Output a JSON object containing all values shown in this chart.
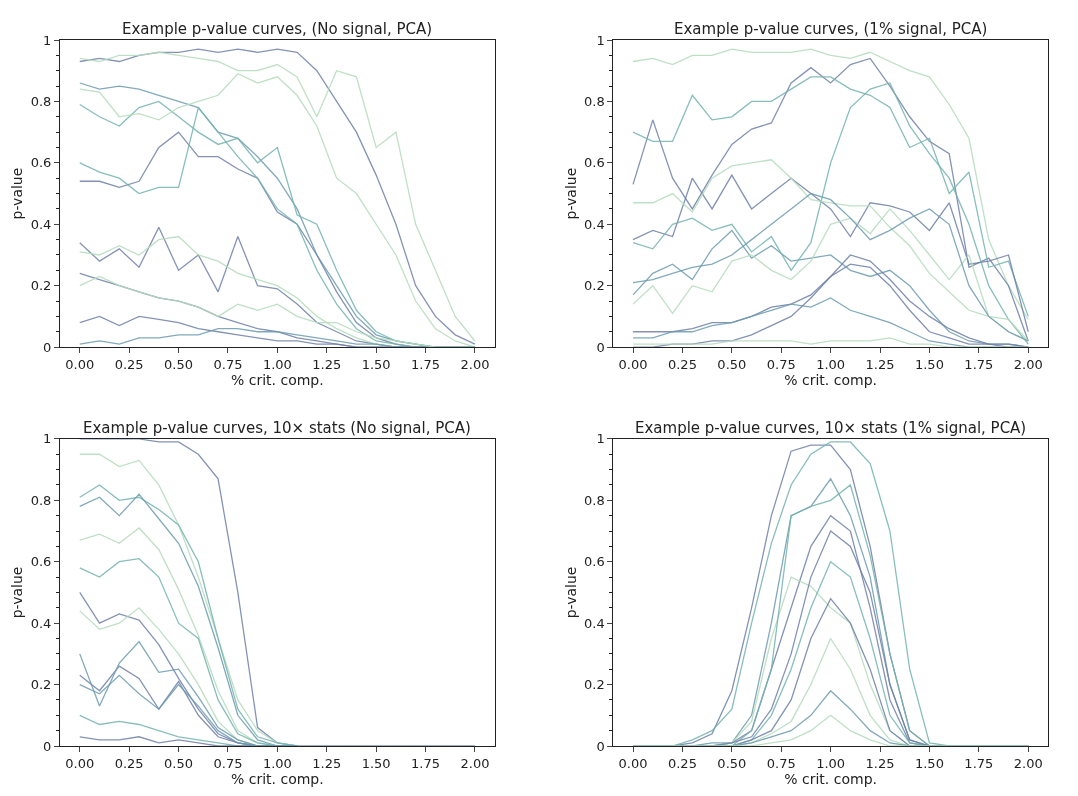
{
  "chart_data": [
    {
      "type": "line",
      "title": "Example p-value curves, (No signal, PCA)",
      "xlabel": "% crit. comp.",
      "ylabel": "p-value",
      "grid": false,
      "x": [
        0,
        0.1,
        0.2,
        0.3,
        0.4,
        0.5,
        0.6,
        0.7,
        0.8,
        0.9,
        1.0,
        1.1,
        1.2,
        1.3,
        1.4,
        1.5,
        1.6,
        1.7,
        1.8,
        1.9,
        2.0
      ],
      "xlim": [
        -0.1,
        2.1
      ],
      "xticks": [
        {
          "value": 0,
          "label": "0.00"
        },
        {
          "value": 0.25,
          "label": "0.25"
        },
        {
          "value": 0.5,
          "label": "0.50"
        },
        {
          "value": 0.75,
          "label": "0.75"
        },
        {
          "value": 1,
          "label": "1.00"
        },
        {
          "value": 1.25,
          "label": "1.25"
        },
        {
          "value": 1.5,
          "label": "1.50"
        },
        {
          "value": 1.75,
          "label": "1.75"
        },
        {
          "value": 2,
          "label": "2.00"
        }
      ],
      "ylim": [
        0,
        1
      ],
      "yticks": [
        0,
        0.2,
        0.4,
        0.6,
        0.8,
        1
      ],
      "series": [
        {
          "color": "#6f80a8",
          "values": [
            0.93,
            0.94,
            0.93,
            0.95,
            0.96,
            0.96,
            0.97,
            0.96,
            0.97,
            0.96,
            0.97,
            0.96,
            0.9,
            0.8,
            0.7,
            0.56,
            0.4,
            0.2,
            0.1,
            0.04,
            0.01
          ]
        },
        {
          "color": "#b3dbbb",
          "values": [
            0.94,
            0.93,
            0.95,
            0.95,
            0.96,
            0.95,
            0.94,
            0.93,
            0.9,
            0.9,
            0.92,
            0.88,
            0.75,
            0.9,
            0.88,
            0.65,
            0.7,
            0.4,
            0.25,
            0.1,
            0.02
          ]
        },
        {
          "color": "#6b9bb0",
          "values": [
            0.86,
            0.84,
            0.85,
            0.84,
            0.82,
            0.8,
            0.78,
            0.7,
            0.68,
            0.62,
            0.55,
            0.45,
            0.3,
            0.2,
            0.1,
            0.04,
            0.02,
            0.01,
            0,
            0,
            0
          ]
        },
        {
          "color": "#73b3ae",
          "values": [
            0.79,
            0.75,
            0.72,
            0.78,
            0.8,
            0.75,
            0.7,
            0.66,
            0.68,
            0.6,
            0.65,
            0.43,
            0.4,
            0.25,
            0.12,
            0.05,
            0.02,
            0.01,
            0,
            0,
            0
          ]
        },
        {
          "color": "#b3dbbb",
          "values": [
            0.84,
            0.83,
            0.75,
            0.76,
            0.74,
            0.78,
            0.8,
            0.82,
            0.89,
            0.86,
            0.88,
            0.82,
            0.72,
            0.55,
            0.5,
            0.4,
            0.3,
            0.15,
            0.06,
            0.02,
            0
          ]
        },
        {
          "color": "#6f80a8",
          "values": [
            0.54,
            0.54,
            0.52,
            0.54,
            0.65,
            0.7,
            0.62,
            0.62,
            0.58,
            0.55,
            0.44,
            0.4,
            0.3,
            0.18,
            0.08,
            0.03,
            0.01,
            0,
            0,
            0,
            0
          ]
        },
        {
          "color": "#73b3ae",
          "values": [
            0.6,
            0.57,
            0.55,
            0.5,
            0.52,
            0.52,
            0.78,
            0.7,
            0.62,
            0.55,
            0.45,
            0.4,
            0.25,
            0.14,
            0.06,
            0.02,
            0.01,
            0,
            0,
            0,
            0
          ]
        },
        {
          "color": "#6f80a8",
          "values": [
            0.34,
            0.28,
            0.32,
            0.26,
            0.39,
            0.25,
            0.3,
            0.18,
            0.36,
            0.2,
            0.19,
            0.14,
            0.08,
            0.05,
            0.02,
            0.01,
            0,
            0,
            0,
            0,
            0
          ]
        },
        {
          "color": "#b3dbbb",
          "values": [
            0.31,
            0.3,
            0.33,
            0.3,
            0.35,
            0.36,
            0.3,
            0.28,
            0.24,
            0.22,
            0.2,
            0.16,
            0.1,
            0.06,
            0.03,
            0.01,
            0,
            0,
            0,
            0,
            0
          ]
        },
        {
          "color": "#6f80a8",
          "values": [
            0.24,
            0.22,
            0.2,
            0.18,
            0.16,
            0.15,
            0.13,
            0.1,
            0.08,
            0.06,
            0.05,
            0.03,
            0.02,
            0.01,
            0,
            0,
            0,
            0,
            0,
            0,
            0
          ]
        },
        {
          "color": "#6f80a8",
          "values": [
            0.08,
            0.1,
            0.07,
            0.1,
            0.09,
            0.08,
            0.06,
            0.05,
            0.04,
            0.03,
            0.02,
            0.02,
            0.01,
            0.01,
            0,
            0,
            0,
            0,
            0,
            0,
            0
          ]
        },
        {
          "color": "#6b9bb0",
          "values": [
            0.01,
            0.02,
            0.01,
            0.03,
            0.03,
            0.04,
            0.04,
            0.06,
            0.06,
            0.05,
            0.05,
            0.04,
            0.03,
            0.02,
            0.01,
            0.01,
            0,
            0,
            0,
            0,
            0
          ]
        },
        {
          "color": "#b3dbbb",
          "values": [
            0.2,
            0.23,
            0.2,
            0.18,
            0.16,
            0.15,
            0.13,
            0.1,
            0.14,
            0.12,
            0.14,
            0.1,
            0.08,
            0.08,
            0.05,
            0.03,
            0.02,
            0.01,
            0,
            0,
            0
          ]
        }
      ]
    },
    {
      "type": "line",
      "title": "Example p-value curves, (1% signal, PCA)",
      "xlabel": "% crit. comp.",
      "ylabel": "p-value",
      "grid": false,
      "x": [
        0,
        0.1,
        0.2,
        0.3,
        0.4,
        0.5,
        0.6,
        0.7,
        0.8,
        0.9,
        1.0,
        1.1,
        1.2,
        1.3,
        1.4,
        1.5,
        1.6,
        1.7,
        1.8,
        1.9,
        2.0
      ],
      "xlim": [
        -0.1,
        2.1
      ],
      "xticks": [
        {
          "value": 0,
          "label": "0.00"
        },
        {
          "value": 0.25,
          "label": "0.25"
        },
        {
          "value": 0.5,
          "label": "0.50"
        },
        {
          "value": 0.75,
          "label": "0.75"
        },
        {
          "value": 1,
          "label": "1.00"
        },
        {
          "value": 1.25,
          "label": "1.25"
        },
        {
          "value": 1.5,
          "label": "1.50"
        },
        {
          "value": 1.75,
          "label": "1.75"
        },
        {
          "value": 2,
          "label": "2.00"
        }
      ],
      "ylim": [
        0,
        1
      ],
      "yticks": [
        0,
        0.2,
        0.4,
        0.6,
        0.8,
        1
      ],
      "series": [
        {
          "color": "#b3dbbb",
          "values": [
            0.93,
            0.94,
            0.92,
            0.95,
            0.95,
            0.97,
            0.96,
            0.96,
            0.96,
            0.97,
            0.95,
            0.94,
            0.96,
            0.93,
            0.9,
            0.88,
            0.79,
            0.68,
            0.35,
            0.2,
            0.09
          ]
        },
        {
          "color": "#6f80a8",
          "values": [
            0.53,
            0.74,
            0.55,
            0.45,
            0.56,
            0.66,
            0.71,
            0.73,
            0.86,
            0.91,
            0.86,
            0.92,
            0.94,
            0.85,
            0.75,
            0.67,
            0.63,
            0.26,
            0.29,
            0.2,
            0.02
          ]
        },
        {
          "color": "#73b3ae",
          "values": [
            0.7,
            0.67,
            0.67,
            0.82,
            0.74,
            0.75,
            0.8,
            0.8,
            0.84,
            0.88,
            0.88,
            0.84,
            0.82,
            0.78,
            0.65,
            0.68,
            0.5,
            0.57,
            0.26,
            0.28,
            0.1
          ]
        },
        {
          "color": "#6f80a8",
          "values": [
            0.35,
            0.38,
            0.36,
            0.55,
            0.45,
            0.56,
            0.45,
            0.5,
            0.55,
            0.5,
            0.45,
            0.36,
            0.47,
            0.46,
            0.44,
            0.38,
            0.47,
            0.27,
            0.28,
            0.3,
            0.05
          ]
        },
        {
          "color": "#6b9bb0",
          "values": [
            0.17,
            0.24,
            0.27,
            0.22,
            0.32,
            0.38,
            0.29,
            0.33,
            0.28,
            0.29,
            0.3,
            0.25,
            0.23,
            0.25,
            0.2,
            0.12,
            0.05,
            0.02,
            0.01,
            0.01,
            0
          ]
        },
        {
          "color": "#73b3ae",
          "values": [
            0.34,
            0.32,
            0.4,
            0.42,
            0.38,
            0.4,
            0.31,
            0.36,
            0.25,
            0.34,
            0.6,
            0.78,
            0.84,
            0.86,
            0.72,
            0.63,
            0.55,
            0.4,
            0.2,
            0.09,
            0.01
          ]
        },
        {
          "color": "#b3dbbb",
          "values": [
            0.47,
            0.47,
            0.5,
            0.44,
            0.55,
            0.59,
            0.6,
            0.61,
            0.55,
            0.48,
            0.47,
            0.46,
            0.46,
            0.39,
            0.33,
            0.24,
            0.18,
            0.12,
            0.1,
            0.09,
            0.02
          ]
        },
        {
          "color": "#6f80a8",
          "values": [
            0.05,
            0.05,
            0.05,
            0.06,
            0.08,
            0.08,
            0.1,
            0.13,
            0.14,
            0.17,
            0.23,
            0.27,
            0.26,
            0.2,
            0.12,
            0.05,
            0.03,
            0.01,
            0.01,
            0,
            0
          ]
        },
        {
          "color": "#6b9bb0",
          "values": [
            0.03,
            0.03,
            0.05,
            0.05,
            0.07,
            0.08,
            0.1,
            0.12,
            0.14,
            0.13,
            0.16,
            0.12,
            0.1,
            0.08,
            0.05,
            0.02,
            0.01,
            0,
            0,
            0,
            0
          ]
        },
        {
          "color": "#6f80a8",
          "values": [
            0,
            0,
            0.01,
            0.01,
            0.02,
            0.02,
            0.04,
            0.07,
            0.1,
            0.16,
            0.23,
            0.3,
            0.28,
            0.22,
            0.15,
            0.1,
            0.06,
            0.03,
            0.01,
            0.01,
            0
          ]
        },
        {
          "color": "#b3dbbb",
          "values": [
            0.14,
            0.2,
            0.11,
            0.2,
            0.18,
            0.28,
            0.3,
            0.25,
            0.22,
            0.28,
            0.4,
            0.42,
            0.37,
            0.45,
            0.38,
            0.3,
            0.22,
            0.3,
            0.1,
            0.05,
            0.02
          ]
        },
        {
          "color": "#b3dbbb",
          "values": [
            0.01,
            0.01,
            0.01,
            0.01,
            0.01,
            0.02,
            0.02,
            0.02,
            0.02,
            0.01,
            0.02,
            0.02,
            0.02,
            0.03,
            0.01,
            0.01,
            0,
            0,
            0,
            0,
            0
          ]
        },
        {
          "color": "#6b9bb0",
          "values": [
            0.21,
            0.22,
            0.24,
            0.26,
            0.27,
            0.3,
            0.35,
            0.4,
            0.45,
            0.5,
            0.48,
            0.42,
            0.35,
            0.38,
            0.42,
            0.45,
            0.4,
            0.2,
            0.1,
            0.05,
            0.02
          ]
        }
      ]
    },
    {
      "type": "line",
      "title": "Example p-value curves, 10× stats (No signal, PCA)",
      "xlabel": "% crit. comp.",
      "ylabel": "p-value",
      "grid": false,
      "x": [
        0,
        0.1,
        0.2,
        0.3,
        0.4,
        0.5,
        0.6,
        0.7,
        0.8,
        0.9,
        1.0,
        1.1,
        1.2,
        1.3,
        1.4,
        1.5,
        1.6,
        1.7,
        1.8,
        1.9,
        2.0
      ],
      "xlim": [
        -0.1,
        2.1
      ],
      "xticks": [
        {
          "value": 0,
          "label": "0.00"
        },
        {
          "value": 0.25,
          "label": "0.25"
        },
        {
          "value": 0.5,
          "label": "0.50"
        },
        {
          "value": 0.75,
          "label": "0.75"
        },
        {
          "value": 1,
          "label": "1.00"
        },
        {
          "value": 1.25,
          "label": "1.25"
        },
        {
          "value": 1.5,
          "label": "1.50"
        },
        {
          "value": 1.75,
          "label": "1.75"
        },
        {
          "value": 2,
          "label": "2.00"
        }
      ],
      "ylim": [
        0,
        1
      ],
      "yticks": [
        0,
        0.2,
        0.4,
        0.6,
        0.8,
        1
      ],
      "series": [
        {
          "color": "#6f80a8",
          "values": [
            1.0,
            1.0,
            1.0,
            1.0,
            0.99,
            0.99,
            0.95,
            0.87,
            0.5,
            0.06,
            0.01,
            0,
            0,
            0,
            0,
            0,
            0,
            0,
            0,
            0,
            0
          ]
        },
        {
          "color": "#b3dbbb",
          "values": [
            0.95,
            0.95,
            0.91,
            0.93,
            0.85,
            0.72,
            0.55,
            0.35,
            0.15,
            0.05,
            0.01,
            0,
            null,
            null,
            null,
            null,
            null,
            null,
            null,
            null,
            null
          ]
        },
        {
          "color": "#73b3ae",
          "values": [
            0.81,
            0.85,
            0.8,
            0.81,
            0.77,
            0.72,
            0.6,
            0.35,
            0.12,
            0.03,
            0.01,
            0,
            null,
            null,
            null,
            null,
            null,
            null,
            null,
            null,
            null
          ]
        },
        {
          "color": "#6b9bb0",
          "values": [
            0.78,
            0.81,
            0.75,
            0.82,
            0.74,
            0.66,
            0.52,
            0.32,
            0.1,
            0.02,
            0,
            0,
            null,
            null,
            null,
            null,
            null,
            null,
            null,
            null,
            null
          ]
        },
        {
          "color": "#b3dbbb",
          "values": [
            0.67,
            0.69,
            0.66,
            0.71,
            0.64,
            0.51,
            0.36,
            0.18,
            0.05,
            0.01,
            0,
            0,
            null,
            null,
            null,
            null,
            null,
            null,
            null,
            null,
            null
          ]
        },
        {
          "color": "#73b3ae",
          "values": [
            0.58,
            0.55,
            0.6,
            0.61,
            0.55,
            0.4,
            0.35,
            0.15,
            0.04,
            0.01,
            0,
            0,
            null,
            null,
            null,
            null,
            null,
            null,
            null,
            null,
            null
          ]
        },
        {
          "color": "#6f80a8",
          "values": [
            0.5,
            0.4,
            0.43,
            0.41,
            0.33,
            0.22,
            0.12,
            0.04,
            0.01,
            0,
            0,
            0,
            null,
            null,
            null,
            null,
            null,
            null,
            null,
            null,
            null
          ]
        },
        {
          "color": "#b3dbbb",
          "values": [
            0.44,
            0.38,
            0.4,
            0.45,
            0.38,
            0.3,
            0.2,
            0.08,
            0.02,
            0,
            0,
            0,
            null,
            null,
            null,
            null,
            null,
            null,
            null,
            null,
            null
          ]
        },
        {
          "color": "#6f80a8",
          "values": [
            0.23,
            0.18,
            0.26,
            0.22,
            0.12,
            0.21,
            0.1,
            0.03,
            0.01,
            0,
            0,
            0,
            null,
            null,
            null,
            null,
            null,
            null,
            null,
            null,
            null
          ]
        },
        {
          "color": "#6b9bb0",
          "values": [
            0.3,
            0.13,
            0.27,
            0.34,
            0.24,
            0.25,
            0.16,
            0.06,
            0.02,
            0,
            0,
            0,
            null,
            null,
            null,
            null,
            null,
            null,
            null,
            null,
            null
          ]
        },
        {
          "color": "#73b3ae",
          "values": [
            0.1,
            0.07,
            0.08,
            0.07,
            0.05,
            0.03,
            0.02,
            0.01,
            0,
            0,
            0,
            0,
            null,
            null,
            null,
            null,
            null,
            null,
            null,
            null,
            null
          ]
        },
        {
          "color": "#6f80a8",
          "values": [
            0.03,
            0.02,
            0.02,
            0.03,
            0.01,
            0.02,
            0.01,
            0,
            0,
            0,
            0,
            0,
            null,
            null,
            null,
            null,
            null,
            null,
            null,
            null,
            null
          ]
        },
        {
          "color": "#6b9bb0",
          "values": [
            0.2,
            0.17,
            0.23,
            0.17,
            0.12,
            0.2,
            0.13,
            0.05,
            0.01,
            0,
            0,
            0,
            null,
            null,
            null,
            null,
            null,
            null,
            null,
            null,
            null
          ]
        }
      ]
    },
    {
      "type": "line",
      "title": "Example p-value curves, 10× stats (1% signal, PCA)",
      "xlabel": "% crit. comp.",
      "ylabel": "p-value",
      "grid": false,
      "x": [
        0,
        0.1,
        0.2,
        0.3,
        0.4,
        0.5,
        0.6,
        0.7,
        0.8,
        0.9,
        1.0,
        1.1,
        1.2,
        1.3,
        1.4,
        1.5,
        1.6,
        1.7,
        1.8,
        1.9,
        2.0
      ],
      "xlim": [
        -0.1,
        2.1
      ],
      "xticks": [
        {
          "value": 0,
          "label": "0.00"
        },
        {
          "value": 0.25,
          "label": "0.25"
        },
        {
          "value": 0.5,
          "label": "0.50"
        },
        {
          "value": 0.75,
          "label": "0.75"
        },
        {
          "value": 1,
          "label": "1.00"
        },
        {
          "value": 1.25,
          "label": "1.25"
        },
        {
          "value": 1.5,
          "label": "1.50"
        },
        {
          "value": 1.75,
          "label": "1.75"
        },
        {
          "value": 2,
          "label": "2.00"
        }
      ],
      "ylim": [
        0,
        1
      ],
      "yticks": [
        0,
        0.2,
        0.4,
        0.6,
        0.8,
        1
      ],
      "series": [
        {
          "color": "#6f80a8",
          "values": [
            0,
            0,
            0,
            0.01,
            0.04,
            0.18,
            0.45,
            0.75,
            0.96,
            0.98,
            0.98,
            0.9,
            0.65,
            0.3,
            0.05,
            0,
            0,
            0,
            0,
            0,
            0
          ]
        },
        {
          "color": "#73b3ae",
          "values": [
            0,
            0,
            0,
            0.02,
            0.05,
            0.12,
            0.4,
            0.66,
            0.85,
            0.95,
            0.99,
            0.99,
            0.92,
            0.7,
            0.25,
            0.01,
            0,
            0,
            0,
            0,
            0
          ]
        },
        {
          "color": "#6b9bb0",
          "values": [
            0,
            0,
            0,
            0,
            0.01,
            0.01,
            0.1,
            0.4,
            0.75,
            0.78,
            0.87,
            0.75,
            0.55,
            0.2,
            0.02,
            0,
            0,
            0,
            0,
            0,
            0
          ]
        },
        {
          "color": "#6f80a8",
          "values": [
            0,
            0,
            0,
            0,
            0,
            0.01,
            0.05,
            0.25,
            0.45,
            0.65,
            0.75,
            0.7,
            0.45,
            0.15,
            0.01,
            0,
            0,
            0,
            0,
            0,
            0
          ]
        },
        {
          "color": "#b3dbbb",
          "values": [
            0,
            0,
            0,
            0,
            0,
            0.01,
            0.08,
            0.35,
            0.55,
            0.52,
            0.45,
            0.4,
            0.2,
            0.05,
            0,
            0,
            0,
            0,
            0,
            0,
            0
          ]
        },
        {
          "color": "#73b3ae",
          "values": [
            0,
            0,
            0,
            0,
            0,
            0,
            0.02,
            0.1,
            0.25,
            0.45,
            0.6,
            0.55,
            0.35,
            0.1,
            0.01,
            0,
            0,
            0,
            0,
            0,
            0
          ]
        },
        {
          "color": "#6f80a8",
          "values": [
            0,
            0,
            0,
            0,
            0,
            0,
            0.02,
            0.05,
            0.15,
            0.35,
            0.48,
            0.4,
            0.25,
            0.05,
            0,
            0,
            0,
            0,
            0,
            0,
            0
          ]
        },
        {
          "color": "#b3dbbb",
          "values": [
            0,
            0,
            0,
            0,
            0,
            0,
            0.01,
            0.04,
            0.08,
            0.2,
            0.35,
            0.25,
            0.1,
            0.02,
            0,
            0,
            0,
            0,
            0,
            0,
            0
          ]
        },
        {
          "color": "#6b9bb0",
          "values": [
            0,
            0,
            0,
            0,
            0,
            0,
            0.01,
            0.03,
            0.05,
            0.1,
            0.18,
            0.12,
            0.05,
            0.01,
            0,
            0,
            0,
            0,
            0,
            0,
            0
          ]
        },
        {
          "color": "#73b3ae",
          "values": [
            0,
            0,
            0,
            0,
            0,
            0,
            0.05,
            0.25,
            0.75,
            0.78,
            0.8,
            0.85,
            0.62,
            0.3,
            0.05,
            0,
            0,
            0,
            0,
            0,
            0
          ]
        },
        {
          "color": "#6f80a8",
          "values": [
            0,
            0,
            0,
            0,
            0,
            0.01,
            0.03,
            0.12,
            0.3,
            0.55,
            0.7,
            0.65,
            0.5,
            0.2,
            0.02,
            0,
            0,
            0,
            0,
            0,
            0
          ]
        },
        {
          "color": "#b3dbbb",
          "values": [
            0,
            0,
            0,
            0,
            0,
            0,
            0,
            0.01,
            0.02,
            0.05,
            0.1,
            0.05,
            0.02,
            0,
            0,
            0,
            0,
            0,
            0,
            0,
            0
          ]
        }
      ]
    }
  ]
}
